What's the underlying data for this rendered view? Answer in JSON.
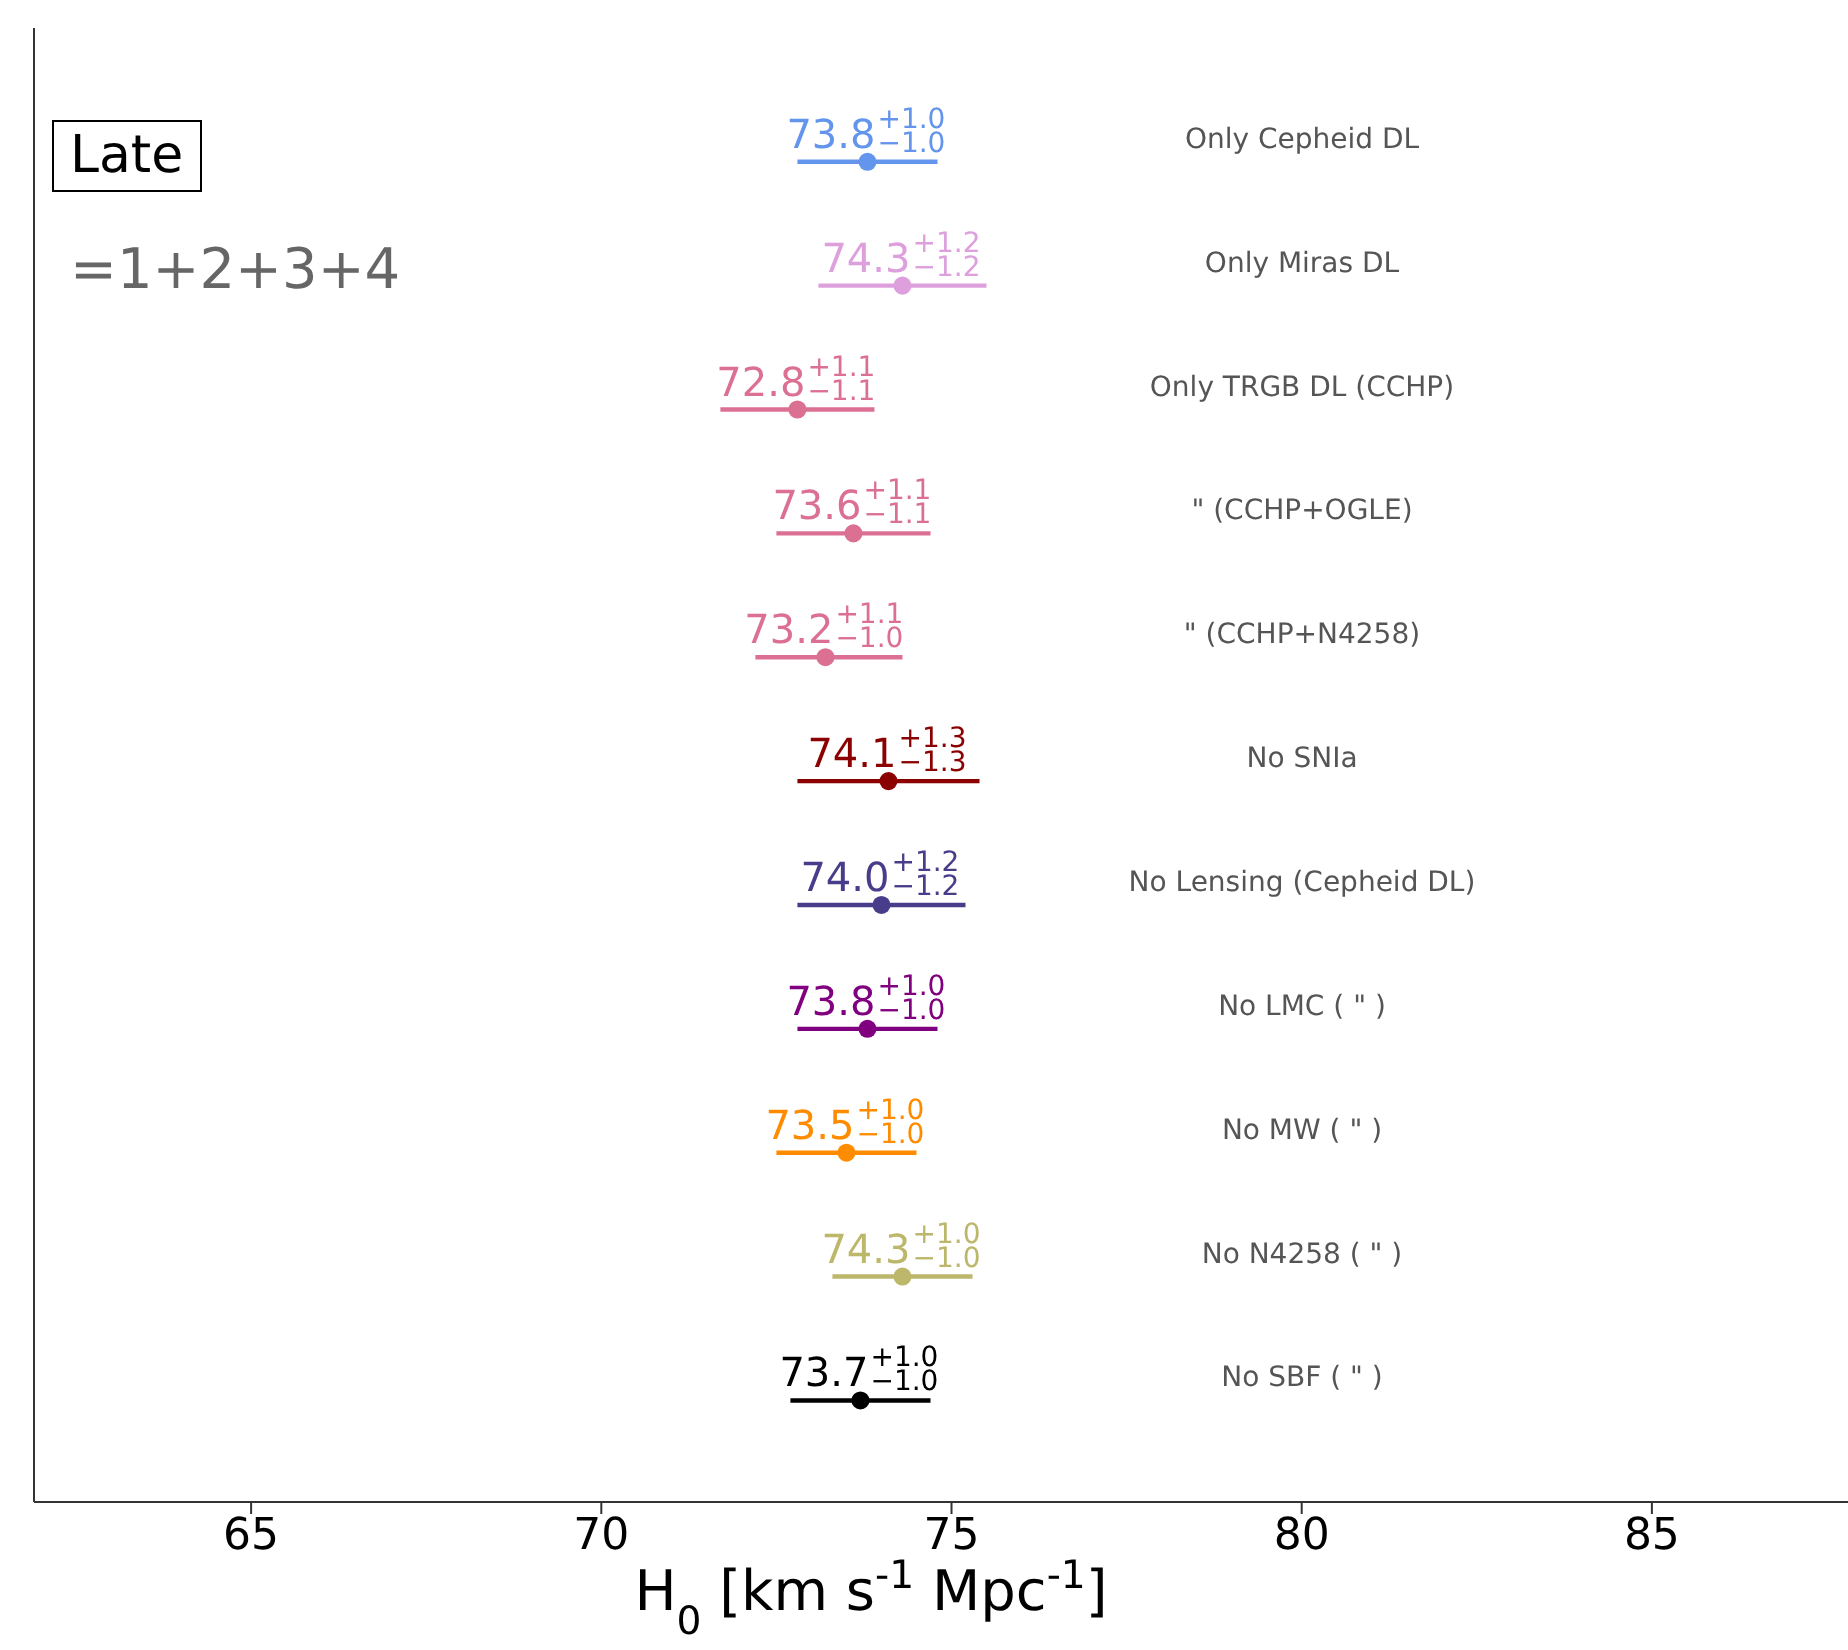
{
  "chart_data": {
    "type": "scatter",
    "orientation": "horizontal",
    "xlabel": "H$_{0}$ [km s$^{-1}$ Mpc$^{-1}$]",
    "categories": [
      "Only Cepheid DL",
      "Only Miras DL",
      "Only TRGB DL (CCHP)",
      "\" (CCHP+OGLE)",
      "\" (CCHP+N4258)",
      "No SNIa",
      "No Lensing (Cepheid DL)",
      "No LMC ( \" )",
      "No MW ( \" )",
      "No N4258 ( \" )",
      "No SBF ( \" )"
    ],
    "values": [
      73.8,
      74.3,
      72.8,
      73.6,
      73.2,
      74.1,
      74.0,
      73.8,
      73.5,
      74.3,
      73.7
    ],
    "errors": [
      1.0,
      1.2,
      1.1,
      1.1,
      [
        72.2,
        74.3
      ],
      1.3,
      1.2,
      1.0,
      1.0,
      1.0,
      1.0
    ],
    "value_labels": [
      "73.8$^{+1.0}$$_{−1.0}$",
      "74.3$^{+1.2}$$_{−1.2}$",
      "72.8$^{+1.1}$$_{−1.1}$",
      "73.6$^{+1.1}$$_{−1.1}$",
      "73.2$^{+1.1}$$_{−1.0}$",
      "74.1$^{+1.3}$$_{−1.3}$",
      "74.0$^{+1.2}$$_{−1.2}$",
      "73.8$^{+1.0}$$_{−1.0}$",
      "73.5$^{+1.0}$$_{−1.0}$",
      "74.3$^{+1.0}$$_{−1.0}$",
      "73.7$^{+1.0}$$_{−1.0}$"
    ],
    "colors": [
      "#6495ed",
      "#dda0dd",
      "#db7093",
      "#db7093",
      "#db7093",
      "#8b0000",
      "#483d8b",
      "#800080",
      "#ff8c00",
      "#bdb76b",
      "#000000"
    ],
    "marker": "circle",
    "xlim": [
      61.9,
      87.8
    ],
    "xticks": [
      65,
      70,
      75,
      80,
      85
    ],
    "grid": false,
    "legend": false,
    "annotations": [
      "Late",
      "=1+2+3+4"
    ]
  }
}
